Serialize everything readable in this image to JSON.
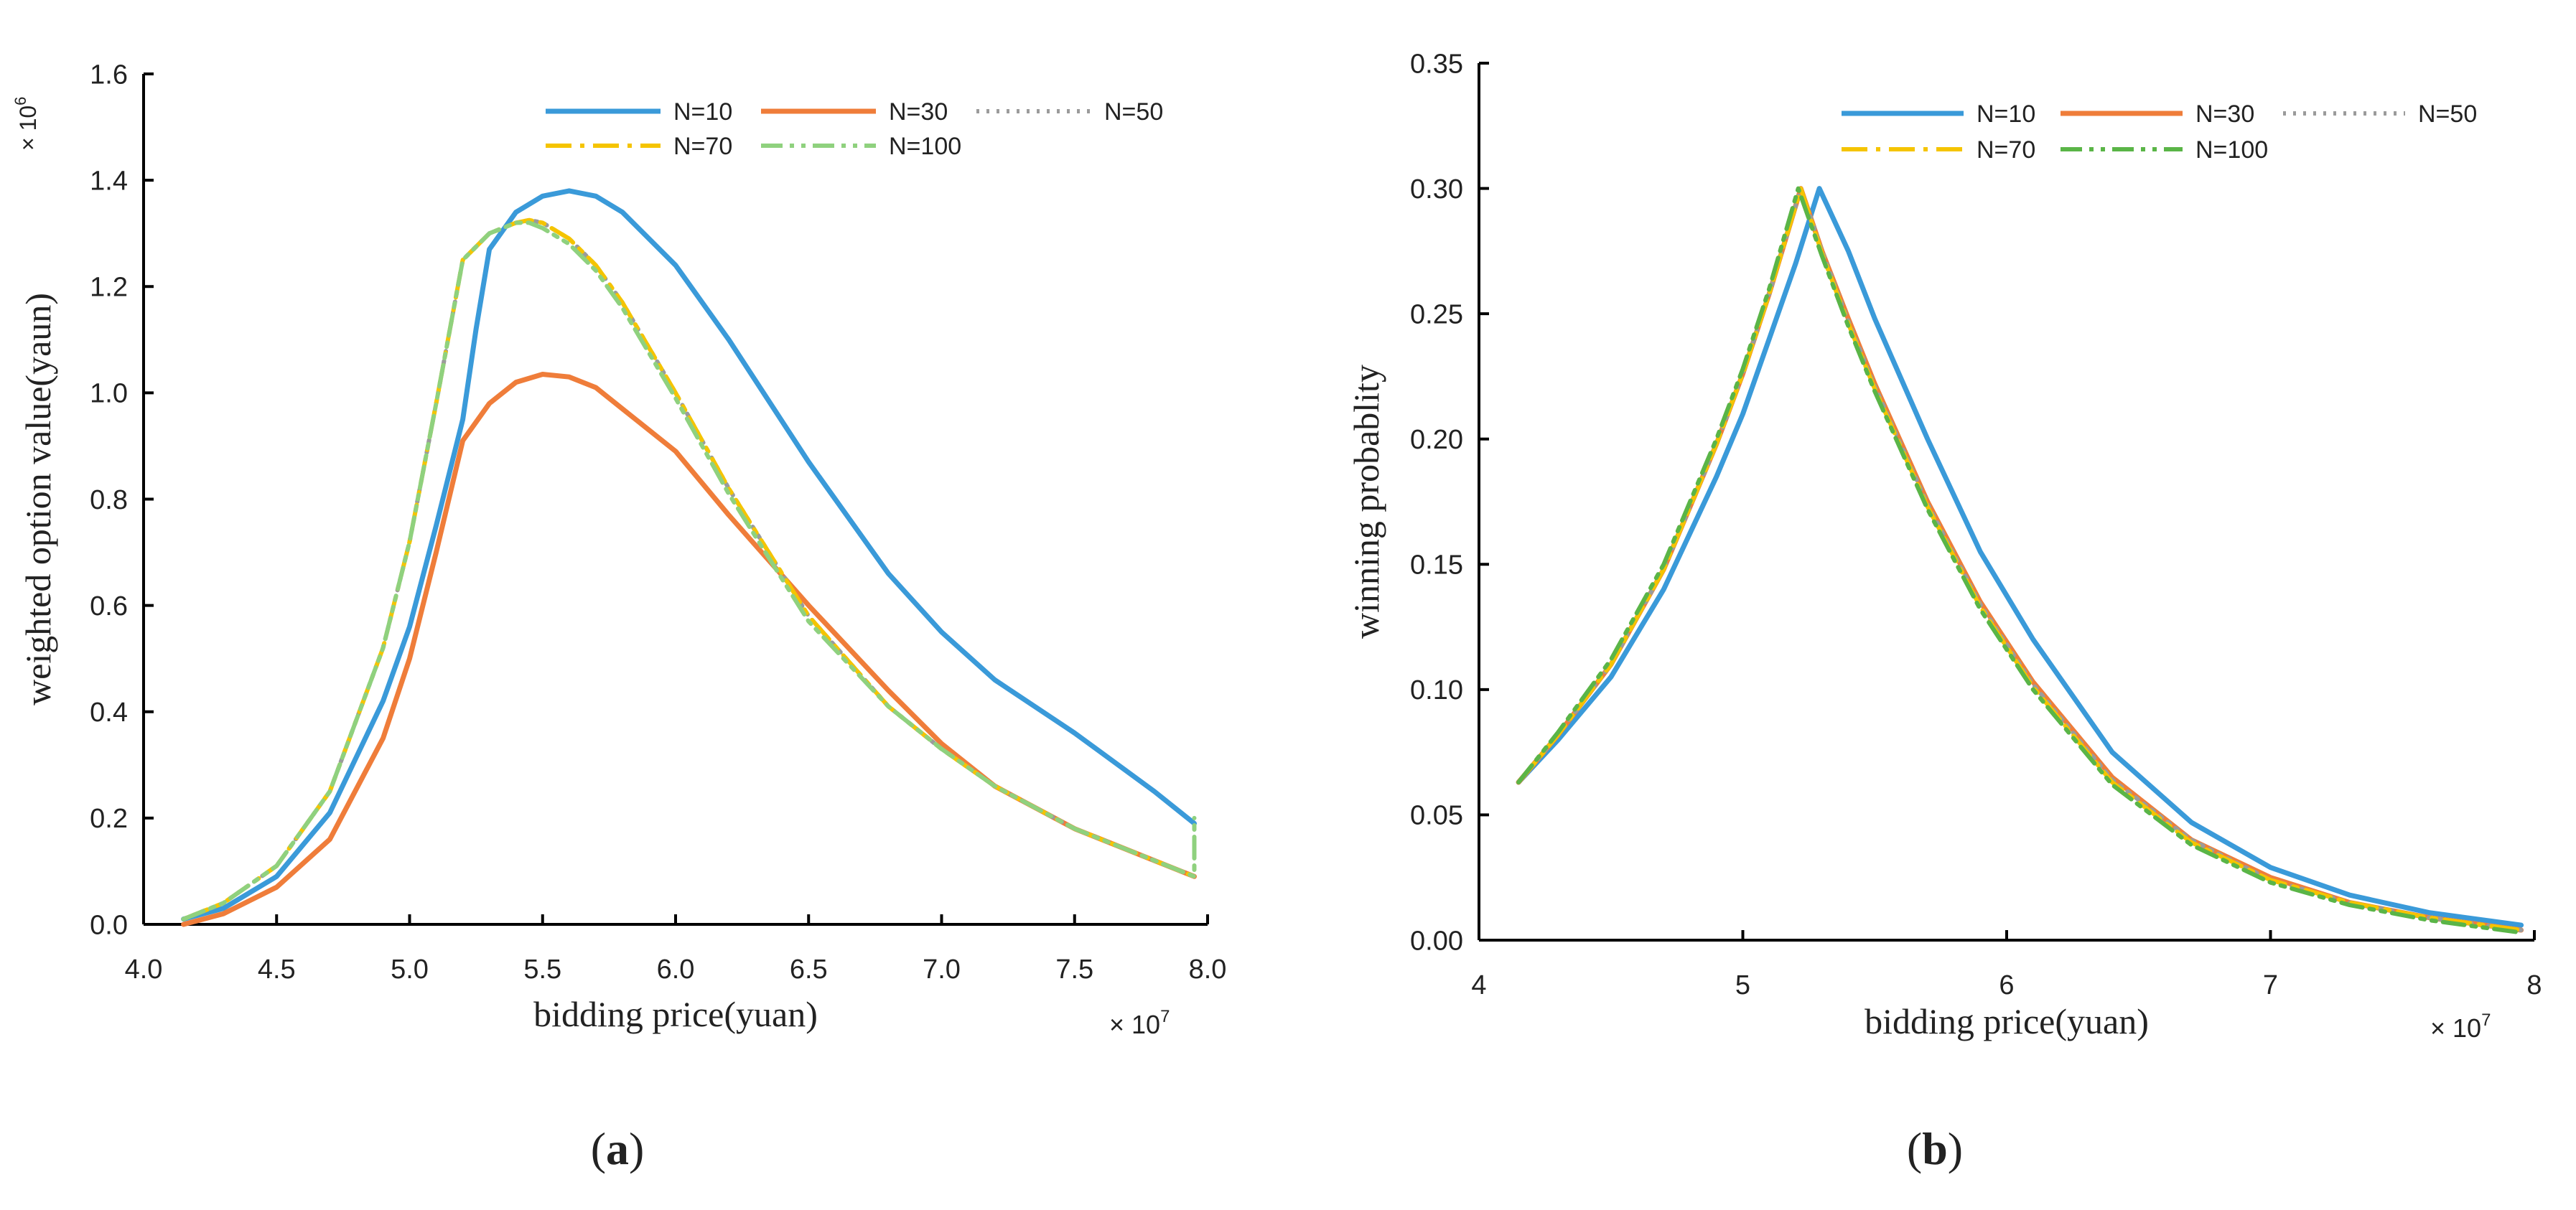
{
  "chart_data": [
    {
      "panel_label": "a",
      "type": "line",
      "title": "",
      "xlabel": "bidding price(yuan)",
      "ylabel": "weighted option value(yaun)",
      "x_multiplier": "× 10",
      "x_multiplier_exp": "7",
      "y_multiplier": "× 10",
      "y_multiplier_exp": "6",
      "xlim": [
        4.0,
        8.0
      ],
      "ylim": [
        0.0,
        1.6
      ],
      "xticks": [
        "4.0",
        "4.5",
        "5.0",
        "5.5",
        "6.0",
        "6.5",
        "7.0",
        "7.5",
        "8.0"
      ],
      "yticks": [
        "0.0",
        "0.2",
        "0.4",
        "0.6",
        "0.8",
        "1.0",
        "1.2",
        "1.4",
        "1.6"
      ],
      "legend_position": "top-right",
      "series": [
        {
          "name": "N=10",
          "color": "#3a9ad9",
          "style": "solid",
          "x": [
            4.15,
            4.3,
            4.5,
            4.7,
            4.9,
            5.0,
            5.1,
            5.2,
            5.25,
            5.3,
            5.4,
            5.5,
            5.6,
            5.7,
            5.8,
            6.0,
            6.2,
            6.5,
            6.8,
            7.0,
            7.2,
            7.5,
            7.8,
            7.95
          ],
          "values": [
            0.01,
            0.03,
            0.09,
            0.21,
            0.42,
            0.56,
            0.75,
            0.95,
            1.12,
            1.27,
            1.34,
            1.37,
            1.38,
            1.37,
            1.34,
            1.24,
            1.1,
            0.87,
            0.66,
            0.55,
            0.46,
            0.36,
            0.25,
            0.19
          ]
        },
        {
          "name": "N=30",
          "color": "#ef7d3a",
          "style": "solid",
          "x": [
            4.15,
            4.3,
            4.5,
            4.7,
            4.9,
            5.0,
            5.1,
            5.2,
            5.3,
            5.4,
            5.5,
            5.6,
            5.7,
            5.8,
            6.0,
            6.2,
            6.5,
            6.8,
            7.0,
            7.2,
            7.5,
            7.8,
            7.95
          ],
          "values": [
            0.0,
            0.02,
            0.07,
            0.16,
            0.35,
            0.5,
            0.7,
            0.91,
            0.98,
            1.02,
            1.035,
            1.03,
            1.01,
            0.97,
            0.89,
            0.77,
            0.6,
            0.44,
            0.34,
            0.26,
            0.18,
            0.12,
            0.09
          ]
        },
        {
          "name": "N=50",
          "color": "#9b9b9b",
          "style": "dotted",
          "x": [
            4.15,
            4.3,
            4.5,
            4.7,
            4.9,
            5.0,
            5.1,
            5.2,
            5.3,
            5.4,
            5.45,
            5.5,
            5.6,
            5.7,
            5.8,
            6.0,
            6.2,
            6.5,
            6.8,
            7.0,
            7.2,
            7.5,
            7.8,
            7.95
          ],
          "values": [
            0.01,
            0.04,
            0.11,
            0.25,
            0.52,
            0.72,
            0.98,
            1.25,
            1.3,
            1.32,
            1.325,
            1.32,
            1.29,
            1.24,
            1.17,
            1.0,
            0.82,
            0.58,
            0.41,
            0.33,
            0.26,
            0.18,
            0.12,
            0.09
          ]
        },
        {
          "name": "N=70",
          "color": "#f5c400",
          "style": "dashdot",
          "x": [
            4.15,
            4.3,
            4.5,
            4.7,
            4.9,
            5.0,
            5.1,
            5.2,
            5.3,
            5.4,
            5.45,
            5.5,
            5.6,
            5.7,
            5.8,
            6.0,
            6.2,
            6.5,
            6.8,
            7.0,
            7.2,
            7.5,
            7.8,
            7.95
          ],
          "values": [
            0.01,
            0.04,
            0.11,
            0.25,
            0.52,
            0.72,
            0.98,
            1.25,
            1.3,
            1.32,
            1.325,
            1.32,
            1.29,
            1.24,
            1.17,
            1.0,
            0.82,
            0.58,
            0.41,
            0.33,
            0.26,
            0.18,
            0.12,
            0.09
          ]
        },
        {
          "name": "N=100",
          "color": "#8fd17e",
          "style": "dashdotdot",
          "x": [
            4.15,
            4.3,
            4.5,
            4.7,
            4.9,
            5.0,
            5.1,
            5.2,
            5.3,
            5.4,
            5.45,
            5.5,
            5.6,
            5.7,
            5.8,
            6.0,
            6.2,
            6.5,
            6.8,
            7.0,
            7.2,
            7.5,
            7.8,
            7.95,
            7.95
          ],
          "values": [
            0.01,
            0.04,
            0.11,
            0.25,
            0.52,
            0.72,
            0.98,
            1.25,
            1.3,
            1.32,
            1.32,
            1.31,
            1.28,
            1.23,
            1.16,
            0.99,
            0.81,
            0.57,
            0.41,
            0.33,
            0.26,
            0.18,
            0.12,
            0.09,
            0.2
          ]
        }
      ]
    },
    {
      "panel_label": "b",
      "type": "line",
      "title": "",
      "xlabel": "bidding price(yuan)",
      "ylabel": "winning probablity",
      "x_multiplier": "× 10",
      "x_multiplier_exp": "7",
      "xlim": [
        4,
        8
      ],
      "ylim": [
        0.0,
        0.35
      ],
      "xticks": [
        "4",
        "5",
        "6",
        "7",
        "8"
      ],
      "yticks": [
        "0.00",
        "0.05",
        "0.10",
        "0.15",
        "0.20",
        "0.25",
        "0.30",
        "0.35"
      ],
      "legend_position": "top-right",
      "series": [
        {
          "name": "N=10",
          "color": "#3a9ad9",
          "style": "solid",
          "x": [
            4.15,
            4.3,
            4.5,
            4.7,
            4.9,
            5.0,
            5.1,
            5.2,
            5.29,
            5.4,
            5.5,
            5.7,
            5.9,
            6.1,
            6.4,
            6.7,
            7.0,
            7.3,
            7.6,
            7.95
          ],
          "values": [
            0.063,
            0.08,
            0.105,
            0.14,
            0.185,
            0.21,
            0.24,
            0.27,
            0.3,
            0.275,
            0.248,
            0.2,
            0.155,
            0.12,
            0.075,
            0.047,
            0.029,
            0.018,
            0.011,
            0.006
          ]
        },
        {
          "name": "N=30",
          "color": "#ef7d3a",
          "style": "solid",
          "x": [
            4.15,
            4.3,
            4.5,
            4.7,
            4.9,
            5.0,
            5.1,
            5.22,
            5.3,
            5.4,
            5.5,
            5.7,
            5.9,
            6.1,
            6.4,
            6.7,
            7.0,
            7.3,
            7.6,
            7.95
          ],
          "values": [
            0.063,
            0.082,
            0.11,
            0.148,
            0.198,
            0.226,
            0.258,
            0.3,
            0.275,
            0.248,
            0.222,
            0.175,
            0.135,
            0.103,
            0.065,
            0.04,
            0.025,
            0.015,
            0.009,
            0.004
          ]
        },
        {
          "name": "N=50",
          "color": "#9b9b9b",
          "style": "dotted",
          "x": [
            4.15,
            4.3,
            4.5,
            4.7,
            4.9,
            5.0,
            5.1,
            5.22,
            5.3,
            5.4,
            5.5,
            5.7,
            5.9,
            6.1,
            6.4,
            6.7,
            7.0,
            7.3,
            7.6,
            7.95
          ],
          "values": [
            0.063,
            0.082,
            0.11,
            0.148,
            0.198,
            0.226,
            0.258,
            0.3,
            0.275,
            0.247,
            0.221,
            0.174,
            0.134,
            0.102,
            0.064,
            0.04,
            0.024,
            0.015,
            0.009,
            0.004
          ]
        },
        {
          "name": "N=70",
          "color": "#f5c400",
          "style": "dashdot",
          "x": [
            4.15,
            4.3,
            4.5,
            4.7,
            4.9,
            5.0,
            5.1,
            5.22,
            5.3,
            5.4,
            5.5,
            5.7,
            5.9,
            6.1,
            6.4,
            6.7,
            7.0,
            7.3,
            7.6,
            7.95
          ],
          "values": [
            0.063,
            0.082,
            0.11,
            0.148,
            0.198,
            0.226,
            0.258,
            0.3,
            0.274,
            0.246,
            0.22,
            0.173,
            0.133,
            0.101,
            0.063,
            0.039,
            0.024,
            0.015,
            0.009,
            0.004
          ]
        },
        {
          "name": "N=100",
          "color": "#5ab547",
          "style": "dashdotdot",
          "x": [
            4.15,
            4.3,
            4.5,
            4.7,
            4.9,
            5.0,
            5.1,
            5.21,
            5.3,
            5.4,
            5.5,
            5.7,
            5.9,
            6.1,
            6.4,
            6.7,
            7.0,
            7.3,
            7.6,
            7.95
          ],
          "values": [
            0.063,
            0.083,
            0.112,
            0.15,
            0.2,
            0.228,
            0.26,
            0.3,
            0.273,
            0.245,
            0.219,
            0.172,
            0.132,
            0.1,
            0.062,
            0.038,
            0.023,
            0.014,
            0.008,
            0.003
          ]
        }
      ]
    }
  ]
}
